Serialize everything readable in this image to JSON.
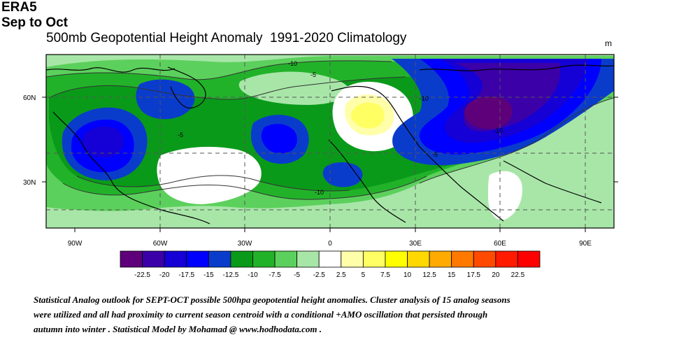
{
  "header": {
    "source": "ERA5",
    "period": "Sep to Oct",
    "title": "500mb Geopotential Height Anomaly  1991-2020 Climatology",
    "unit": "m"
  },
  "map": {
    "lat_labels": [
      "60N",
      "30N"
    ],
    "lon_labels": [
      "90W",
      "60W",
      "30W",
      "0",
      "30E",
      "60E",
      "90E"
    ],
    "contour_labels": [
      "-10",
      "-5",
      "-10",
      "-5",
      "-10",
      "-5",
      "-10"
    ]
  },
  "colorbar": {
    "labels": [
      "-22.5",
      "-20",
      "-17.5",
      "-15",
      "-12.5",
      "-10",
      "-7.5",
      "-5",
      "-2.5",
      "2.5",
      "5",
      "7.5",
      "10",
      "12.5",
      "15",
      "17.5",
      "20",
      "22.5"
    ],
    "colors": [
      "#5e007a",
      "#3b00a8",
      "#1500d6",
      "#0000ff",
      "#0a3ccc",
      "#0a9a1a",
      "#22b22a",
      "#5cd05c",
      "#a8e6a8",
      "#ffffff",
      "#ffffaa",
      "#ffff64",
      "#ffff00",
      "#ffd800",
      "#ffaa00",
      "#ff7800",
      "#ff4a00",
      "#ff1a00",
      "#ff0000"
    ]
  },
  "caption": {
    "line1": " Statistical Analog outlook for SEPT-OCT possible 500hpa geopotential height anomalies. Cluster analysis of 15 analog seasons",
    "line2": "were utilized and all had proximity to current season centroid with a conditional +AMO oscillation that persisted through",
    "line3": "autumn into winter . Statistical Model  by  Mohamad @ www.hodhodata.com ."
  }
}
